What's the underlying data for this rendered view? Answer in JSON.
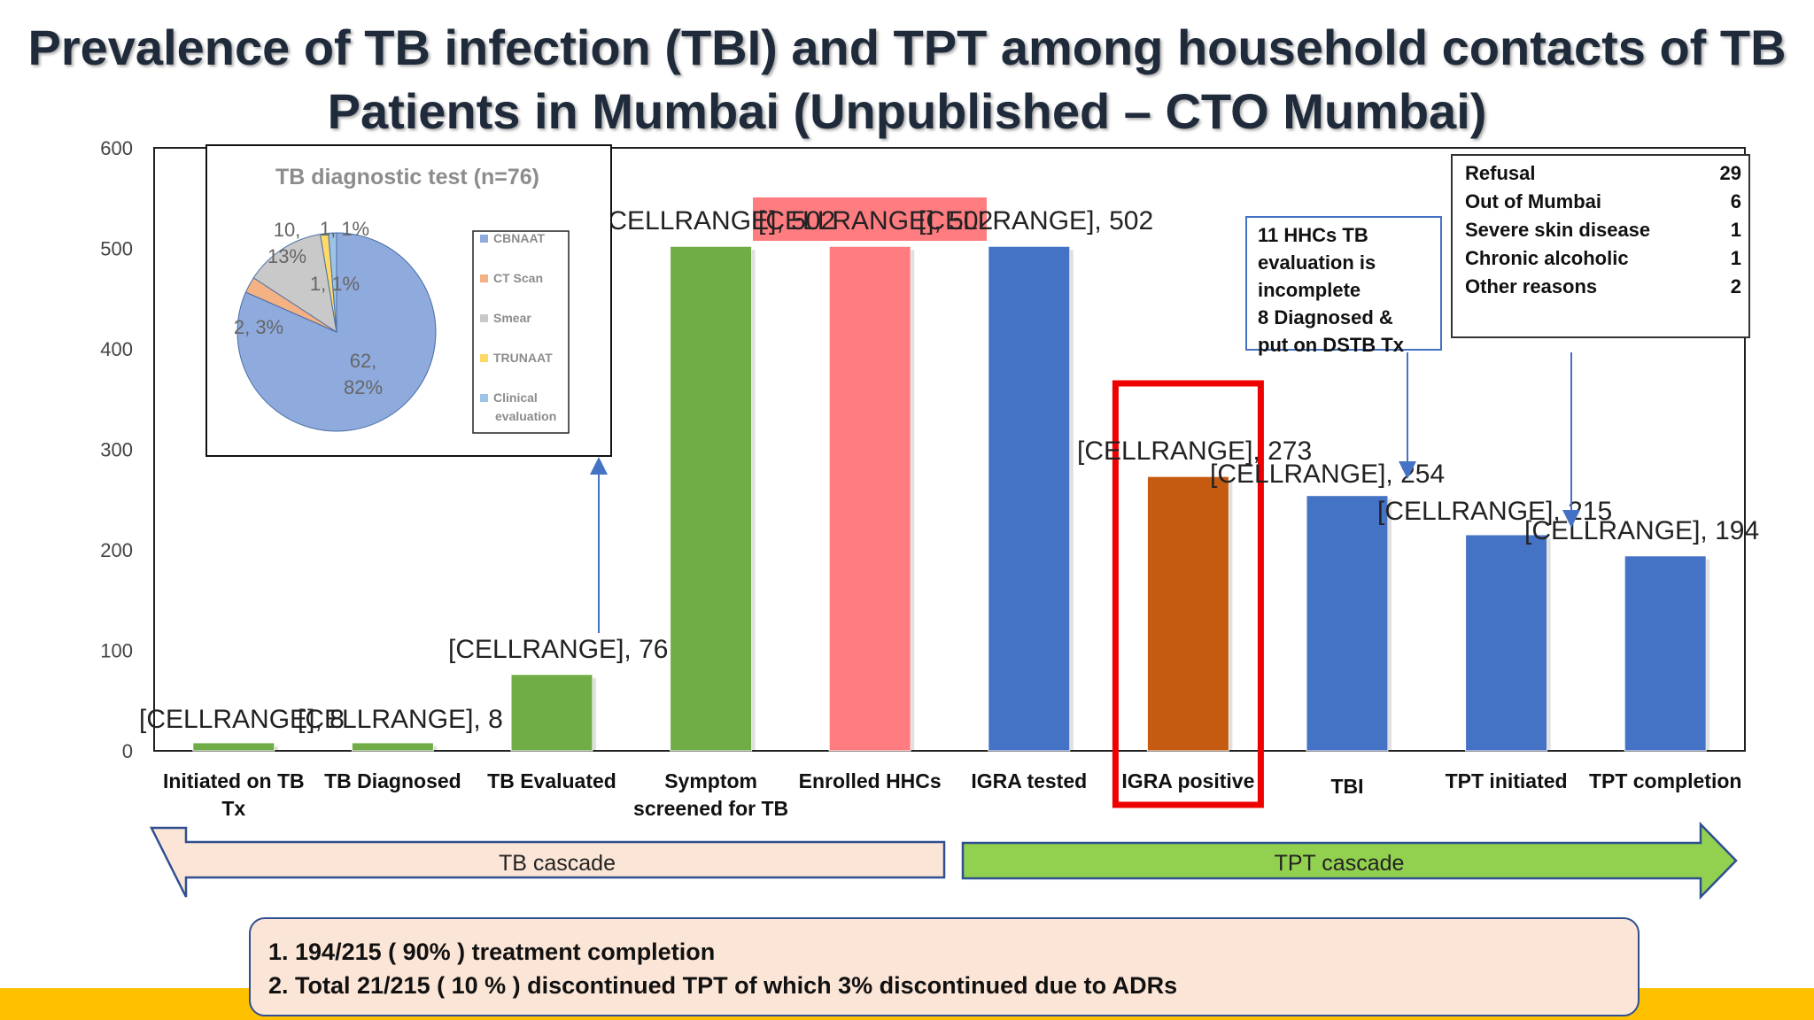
{
  "slide": {
    "title_line1": "Prevalence of TB infection (TBI) and TPT among household contacts of TB",
    "title_line2": "Patients in Mumbai (Unpublished – CTO Mumbai)"
  },
  "chart_data": [
    {
      "type": "bar",
      "categories": [
        "Initiated on TB Tx",
        "TB Diagnosed",
        "TB Evaluated",
        "Symptom screened for TB",
        "Enrolled HHCs",
        "IGRA tested",
        "IGRA positive",
        "TBI",
        "TPT initiated",
        "TPT completion"
      ],
      "category_lines": [
        [
          "Initiated on TB",
          "Tx"
        ],
        [
          "TB Diagnosed"
        ],
        [
          "TB Evaluated"
        ],
        [
          "Symptom",
          "screened for TB"
        ],
        [
          "Enrolled HHCs"
        ],
        [
          "IGRA tested"
        ],
        [
          "IGRA positive"
        ],
        [
          "TBI"
        ],
        [
          "TPT initiated"
        ],
        [
          "TPT completion"
        ]
      ],
      "values": [
        8,
        8,
        76,
        502,
        502,
        502,
        273,
        254,
        215,
        194
      ],
      "data_labels": [
        "[CELLRANGE], 8",
        "[CELLRANGE], 8",
        "[CELLRANGE], 76",
        "[CELLRANGE], 502",
        "[CELLRANGE], 502",
        "[CELLRANGE], 502",
        "[CELLRANGE], 273",
        "[CELLRANGE], 254",
        "[CELLRANGE], 215",
        "[CELLRANGE], 194"
      ],
      "bar_colors": [
        "#70ad47",
        "#70ad47",
        "#70ad47",
        "#70ad47",
        "#ff7c80",
        "#4472c4",
        "#c55a11",
        "#4472c4",
        "#4472c4",
        "#4472c4"
      ],
      "ylim": [
        0,
        600
      ],
      "yticks": [
        0,
        100,
        200,
        300,
        400,
        500,
        600
      ],
      "grid": false,
      "highlight": "IGRA positive"
    },
    {
      "type": "pie",
      "title": "TB diagnostic test (n=76)",
      "labels": [
        "CBNAAT",
        "CT Scan",
        "Smear",
        "TRUNAAT",
        "Clinical evaluation"
      ],
      "values": [
        62,
        2,
        10,
        1,
        1
      ],
      "data_labels": [
        "62, 82%",
        "2, 3%",
        "10, 13%",
        "1, 1%",
        "1, 1%"
      ],
      "colors": [
        "#8faadc",
        "#f4b183",
        "#c9c9c9",
        "#ffd966",
        "#9dc3e6"
      ],
      "legend_position": "right"
    }
  ],
  "cascades": {
    "tb": "TB cascade",
    "tpt": "TPT cascade"
  },
  "callout_hhc": {
    "line1": "11 HHCs TB",
    "line2": "evaluation is",
    "line3": "incomplete",
    "line4": "8  Diagnosed &",
    "line5": "put on DSTB Tx"
  },
  "reasons": [
    {
      "label": "Refusal",
      "value": "29"
    },
    {
      "label": "Out of Mumbai",
      "value": "6"
    },
    {
      "label": "Severe skin disease",
      "value": "1"
    },
    {
      "label": "Chronic alcoholic",
      "value": "1"
    },
    {
      "label": "Other reasons",
      "value": "2"
    }
  ],
  "summary": {
    "line1": "1.  194/215  ( 90% ) treatment completion",
    "line2": "2. Total 21/215 ( 10 % ) discontinued TPT  of which 3% discontinued due to ADRs"
  }
}
